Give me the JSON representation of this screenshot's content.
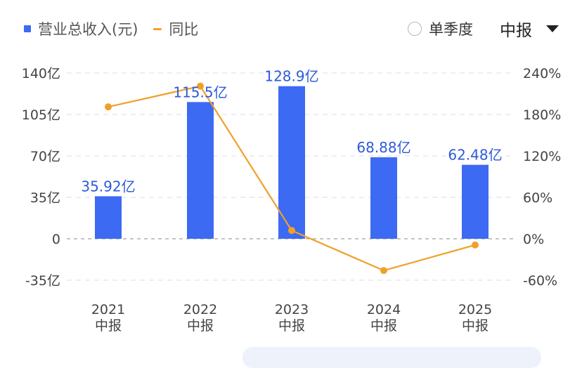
{
  "legend": {
    "bar_label": "营业总收入(元)",
    "line_label": "同比"
  },
  "controls": {
    "single_quarter_label": "单季度",
    "period_label": "中报"
  },
  "colors": {
    "bar": "#3d6af3",
    "line": "#f0a02a",
    "grid": "#e4e4e4",
    "zero_line": "#a0a0a0",
    "axis_text": "#444444",
    "data_label": "#2e5bd8"
  },
  "chart_data": {
    "type": "bar",
    "categories": [
      {
        "year": "2021",
        "period": "中报"
      },
      {
        "year": "2022",
        "period": "中报"
      },
      {
        "year": "2023",
        "period": "中报"
      },
      {
        "year": "2024",
        "period": "中报"
      },
      {
        "year": "2025",
        "period": "中报"
      }
    ],
    "series": [
      {
        "name": "营业总收入(元)",
        "type": "bar",
        "axis": "left",
        "values": [
          35.92,
          115.5,
          128.9,
          68.88,
          62.48
        ],
        "labels": [
          "35.92亿",
          "115.5亿",
          "128.9亿",
          "68.88亿",
          "62.48亿"
        ]
      },
      {
        "name": "同比",
        "type": "line",
        "axis": "right",
        "values": [
          191,
          221,
          12,
          -46,
          -9
        ]
      }
    ],
    "y_left": {
      "ticks": [
        140,
        105,
        70,
        35,
        0,
        -35
      ],
      "tick_labels": [
        "140亿",
        "105亿",
        "70亿",
        "35亿",
        "0",
        "-35亿"
      ],
      "range": [
        -35,
        140
      ]
    },
    "y_right": {
      "ticks": [
        240,
        180,
        120,
        60,
        0,
        -60
      ],
      "tick_labels": [
        "240%",
        "180%",
        "120%",
        "60%",
        "0%",
        "-60%"
      ],
      "range": [
        -60,
        240
      ]
    },
    "grid": true
  }
}
